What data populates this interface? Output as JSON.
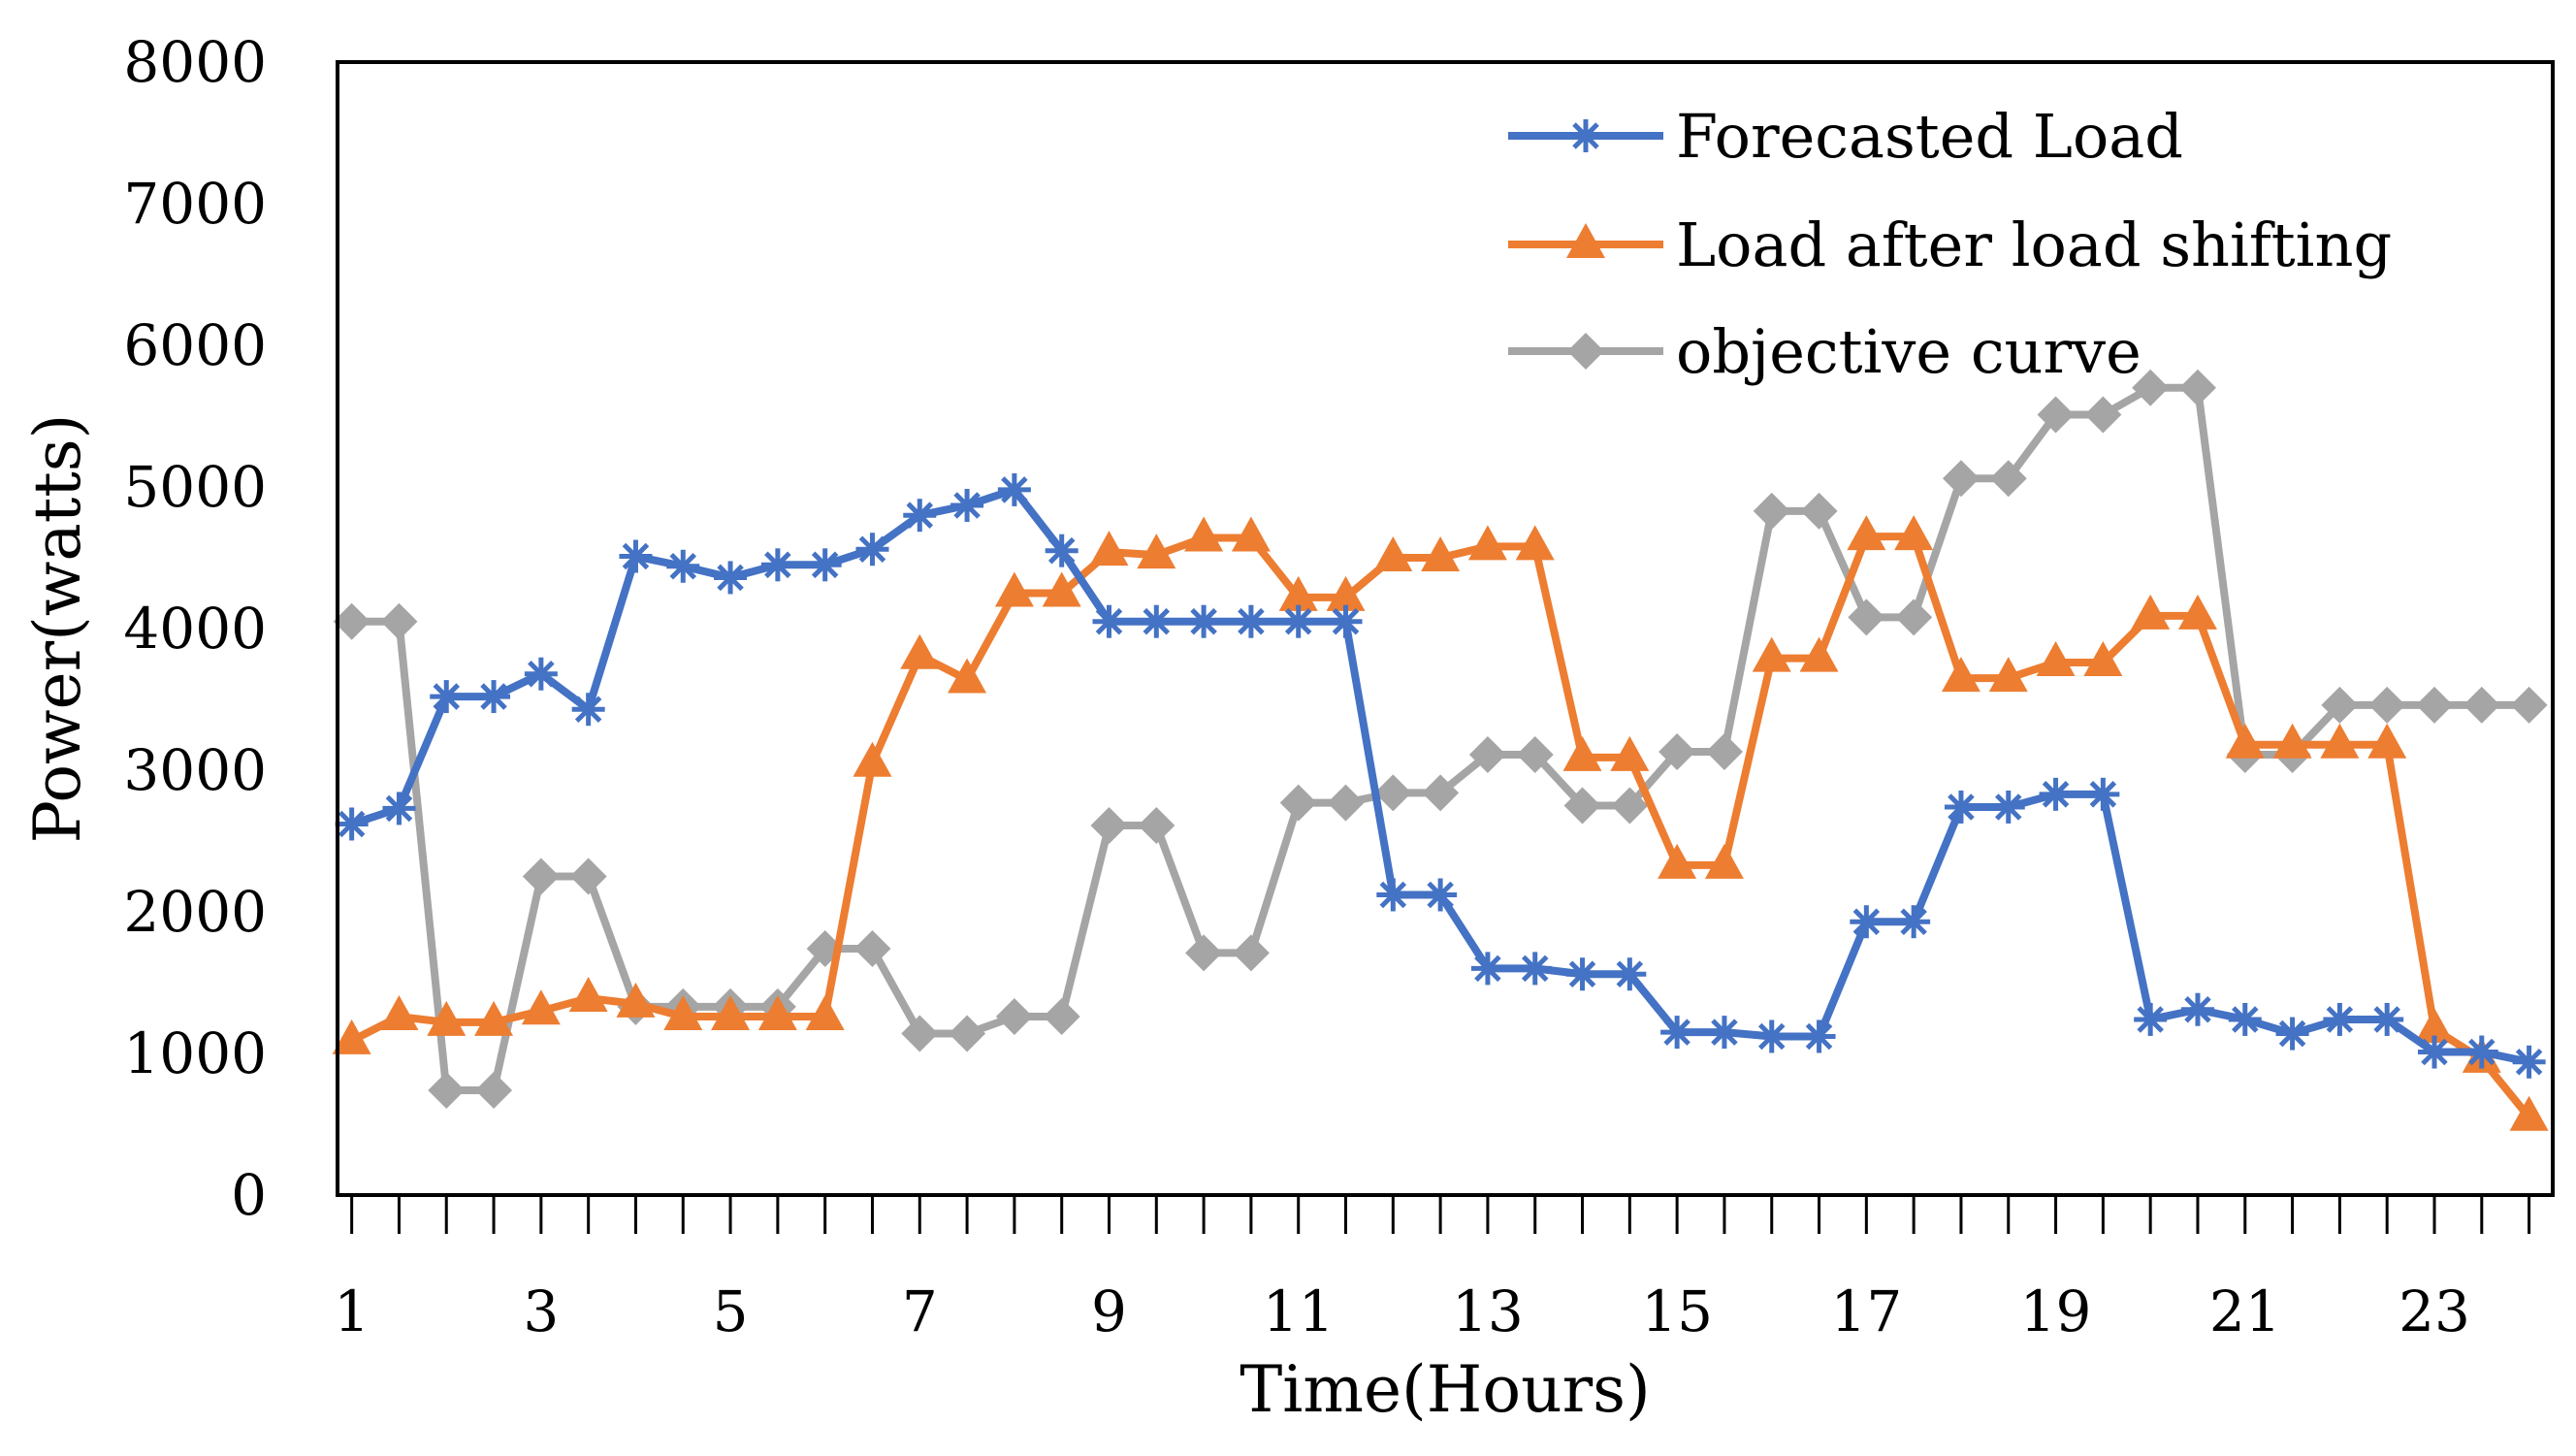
{
  "chart_data": {
    "type": "line",
    "title": "",
    "xlabel": "Time(Hours)",
    "ylabel": "Power(watts)",
    "ylim": [
      0,
      8000
    ],
    "xlim": [
      0.85,
      24.25
    ],
    "yticks": [
      0,
      1000,
      2000,
      3000,
      4000,
      5000,
      6000,
      7000,
      8000
    ],
    "ytick_labels": [
      "0",
      "1000",
      "2000",
      "3000",
      "4000",
      "5000",
      "6000",
      "7000",
      "8000"
    ],
    "xticks": [
      1,
      3,
      5,
      7,
      9,
      11,
      13,
      15,
      17,
      19,
      21,
      23
    ],
    "xtick_labels": [
      "1",
      "3",
      "5",
      "7",
      "9",
      "11",
      "13",
      "15",
      "17",
      "19",
      "21",
      "23"
    ],
    "grid": false,
    "legend_position": "top-right",
    "x": [
      1,
      1.5,
      2,
      2.5,
      3,
      3.5,
      4,
      4.5,
      5,
      5.5,
      6,
      6.5,
      7,
      7.5,
      8,
      8.5,
      9,
      9.5,
      10,
      10.5,
      11,
      11.5,
      12,
      12.5,
      13,
      13.5,
      14,
      14.5,
      15,
      15.5,
      16,
      16.5,
      17,
      17.5,
      18,
      18.5,
      19,
      19.5,
      20,
      20.5,
      21,
      21.5,
      22,
      22.5,
      23,
      23.5,
      24
    ],
    "series": [
      {
        "name": "Forecasted Load",
        "color": "#4472C4",
        "marker": "asterisk",
        "values": [
          2620,
          2730,
          3520,
          3520,
          3680,
          3430,
          4510,
          4440,
          4360,
          4450,
          4450,
          4560,
          4800,
          4870,
          4980,
          4550,
          4050,
          4050,
          4050,
          4050,
          4050,
          4050,
          2120,
          2120,
          1600,
          1600,
          1560,
          1560,
          1150,
          1150,
          1120,
          1120,
          1930,
          1930,
          2740,
          2740,
          2830,
          2830,
          1240,
          1310,
          1240,
          1140,
          1240,
          1240,
          1010,
          1010,
          940
        ]
      },
      {
        "name": "Load after load shifting",
        "color": "#ED7D31",
        "marker": "triangle",
        "values": [
          1090,
          1260,
          1220,
          1220,
          1300,
          1390,
          1350,
          1260,
          1260,
          1260,
          1260,
          3050,
          3810,
          3640,
          4250,
          4250,
          4540,
          4520,
          4640,
          4640,
          4220,
          4220,
          4500,
          4500,
          4580,
          4580,
          3090,
          3090,
          2330,
          2330,
          3790,
          3790,
          4650,
          4650,
          3650,
          3650,
          3760,
          3760,
          4090,
          4090,
          3180,
          3180,
          3180,
          3180,
          1170,
          960,
          550
        ]
      },
      {
        "name": "objective curve",
        "color": "#A5A5A5",
        "marker": "diamond",
        "values": [
          4050,
          4050,
          740,
          740,
          2250,
          2250,
          1330,
          1330,
          1330,
          1330,
          1740,
          1740,
          1140,
          1140,
          1260,
          1260,
          2610,
          2610,
          1710,
          1710,
          2770,
          2770,
          2840,
          2840,
          3110,
          3110,
          2750,
          2750,
          3130,
          3130,
          4830,
          4830,
          4080,
          4080,
          5060,
          5060,
          5510,
          5510,
          5700,
          5700,
          3110,
          3110,
          3460,
          3460,
          3460,
          3460,
          3460
        ]
      }
    ]
  }
}
